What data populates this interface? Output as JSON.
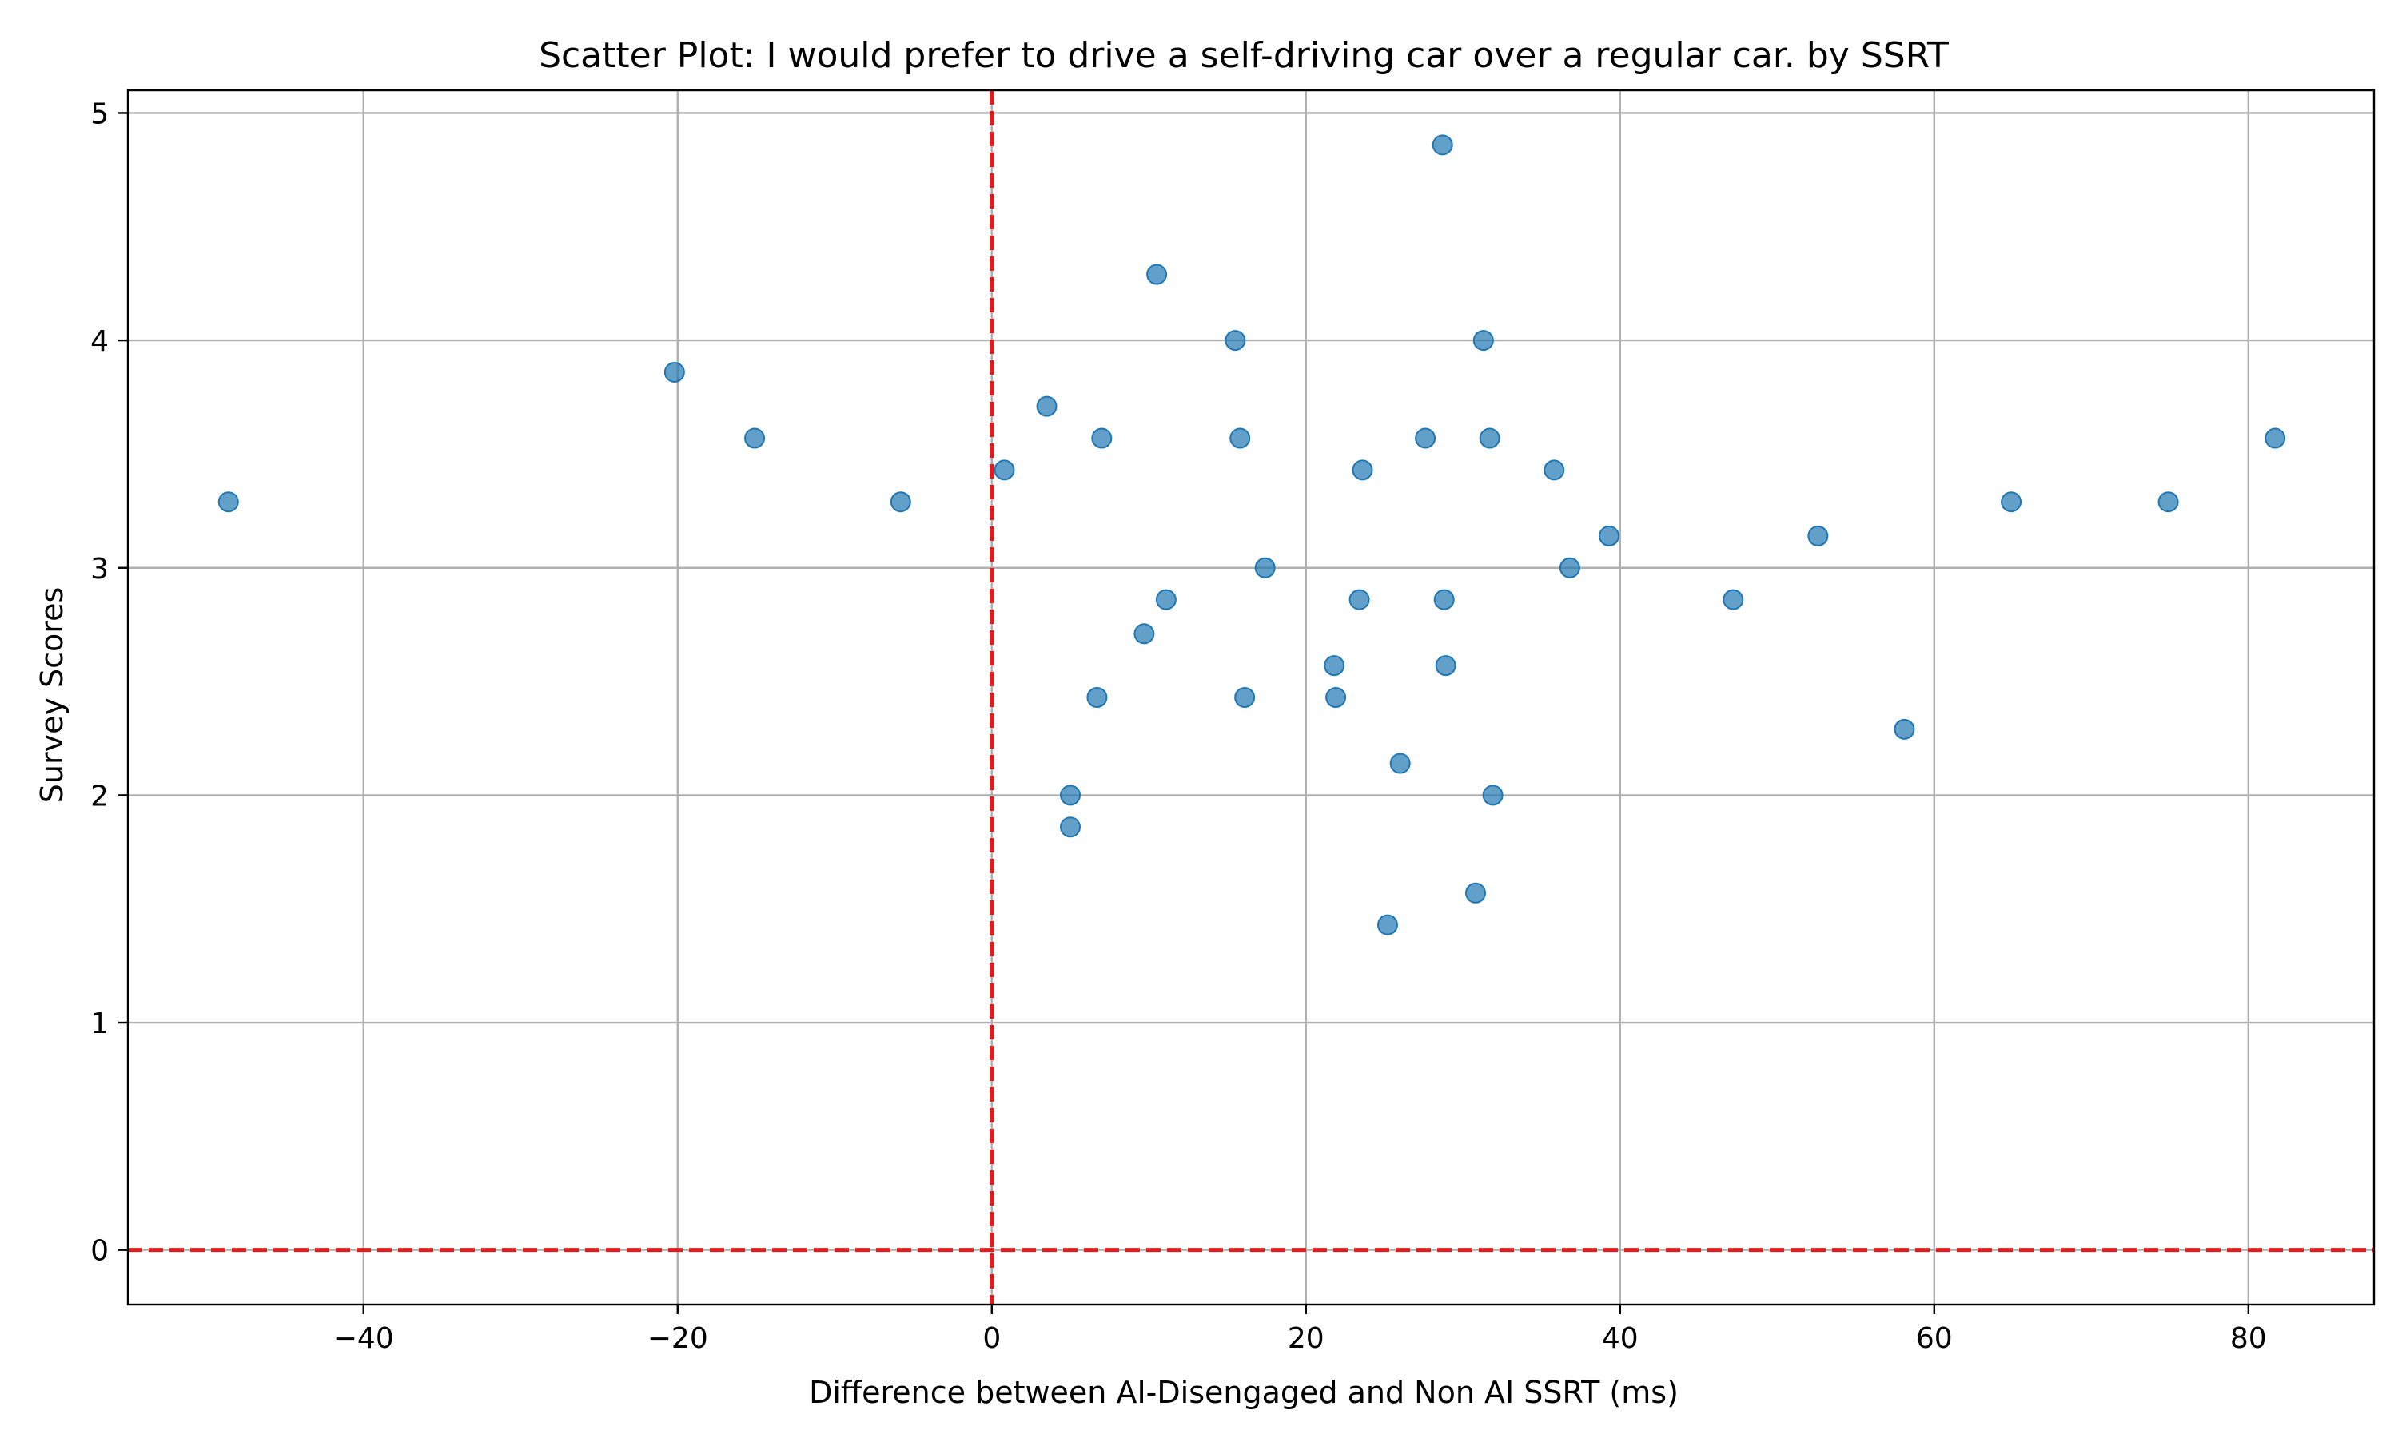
{
  "chart_data": {
    "type": "scatter",
    "title": "Scatter Plot: I would prefer to drive a self-driving car over a regular car. by SSRT",
    "xlabel": "Difference between AI-Disengaged and Non AI SSRT (ms)",
    "ylabel": "Survey Scores",
    "xlim": [
      -55,
      88
    ],
    "ylim": [
      -0.24,
      5.1
    ],
    "xticks": [
      -40,
      -20,
      0,
      20,
      40,
      60,
      80
    ],
    "yticks": [
      0,
      1,
      2,
      3,
      4,
      5
    ],
    "xtick_labels": [
      "−40",
      "−20",
      "0",
      "20",
      "40",
      "60",
      "80"
    ],
    "ytick_labels": [
      "0",
      "1",
      "2",
      "3",
      "4",
      "5"
    ],
    "grid": true,
    "point_color": "#1f77b4",
    "point_alpha": 0.7,
    "reference_lines": [
      {
        "orientation": "vertical",
        "x": 0,
        "color": "#e41a1c",
        "style": "dashed"
      },
      {
        "orientation": "horizontal",
        "y": 0,
        "color": "#e41a1c",
        "style": "dashed"
      }
    ],
    "points": [
      {
        "x": -48.6,
        "y": 3.29
      },
      {
        "x": -20.2,
        "y": 3.86
      },
      {
        "x": -15.1,
        "y": 3.57
      },
      {
        "x": -5.8,
        "y": 3.29
      },
      {
        "x": 0.8,
        "y": 3.43
      },
      {
        "x": 3.5,
        "y": 3.71
      },
      {
        "x": 7.0,
        "y": 3.57
      },
      {
        "x": 10.5,
        "y": 4.29
      },
      {
        "x": 15.5,
        "y": 4.0
      },
      {
        "x": 15.8,
        "y": 3.57
      },
      {
        "x": 28.7,
        "y": 4.86
      },
      {
        "x": 31.3,
        "y": 4.0
      },
      {
        "x": 27.6,
        "y": 3.57
      },
      {
        "x": 31.7,
        "y": 3.57
      },
      {
        "x": 23.6,
        "y": 3.43
      },
      {
        "x": 35.8,
        "y": 3.43
      },
      {
        "x": 39.3,
        "y": 3.14
      },
      {
        "x": 17.4,
        "y": 3.0
      },
      {
        "x": 36.8,
        "y": 3.0
      },
      {
        "x": 11.1,
        "y": 2.86
      },
      {
        "x": 23.4,
        "y": 2.86
      },
      {
        "x": 28.8,
        "y": 2.86
      },
      {
        "x": 47.2,
        "y": 2.86
      },
      {
        "x": 52.6,
        "y": 3.14
      },
      {
        "x": 9.7,
        "y": 2.71
      },
      {
        "x": 21.8,
        "y": 2.57
      },
      {
        "x": 28.9,
        "y": 2.57
      },
      {
        "x": 6.7,
        "y": 2.43
      },
      {
        "x": 16.1,
        "y": 2.43
      },
      {
        "x": 21.9,
        "y": 2.43
      },
      {
        "x": 58.1,
        "y": 2.29
      },
      {
        "x": 26.0,
        "y": 2.14
      },
      {
        "x": 5.0,
        "y": 2.0
      },
      {
        "x": 31.9,
        "y": 2.0
      },
      {
        "x": 5.0,
        "y": 1.86
      },
      {
        "x": 30.8,
        "y": 1.57
      },
      {
        "x": 25.2,
        "y": 1.43
      },
      {
        "x": 64.9,
        "y": 3.29
      },
      {
        "x": 74.9,
        "y": 3.29
      },
      {
        "x": 81.7,
        "y": 3.57
      }
    ]
  }
}
